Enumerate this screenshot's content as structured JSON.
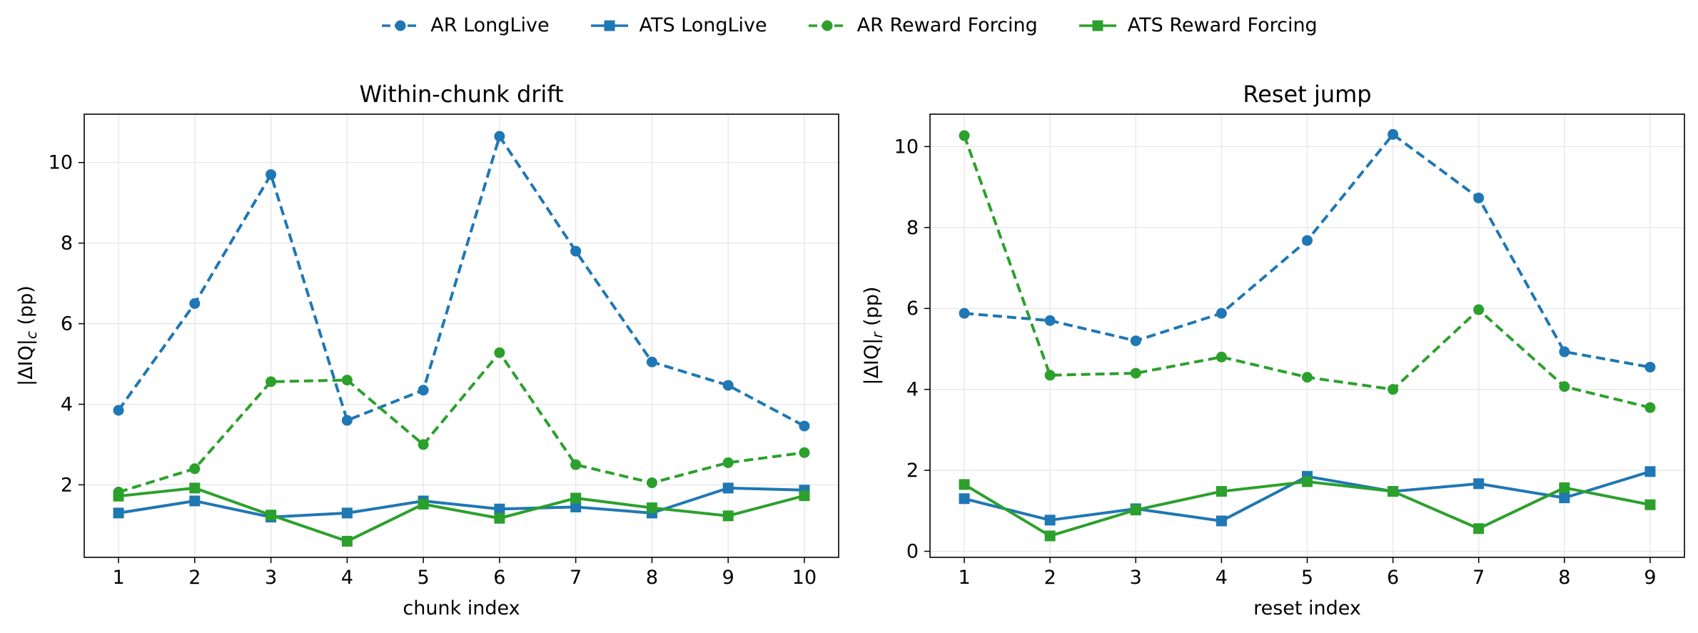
{
  "legend": {
    "items": [
      {
        "label": "AR LongLive",
        "color": "#1f77b4",
        "dashed": true,
        "marker": "circle"
      },
      {
        "label": "ATS LongLive",
        "color": "#1f77b4",
        "dashed": false,
        "marker": "square"
      },
      {
        "label": "AR Reward Forcing",
        "color": "#2ca02c",
        "dashed": true,
        "marker": "circle"
      },
      {
        "label": "ATS Reward Forcing",
        "color": "#2ca02c",
        "dashed": false,
        "marker": "square"
      }
    ],
    "placement": "top-center"
  },
  "chart_data": [
    {
      "type": "line",
      "title": "Within-chunk drift",
      "xlabel": "chunk index",
      "ylabel": "|ΔIQ|c (pp)",
      "ylabel_parts": {
        "pre": "|ΔIQ|",
        "sub": "c",
        "post": " (pp)"
      },
      "x": [
        1,
        2,
        3,
        4,
        5,
        6,
        7,
        8,
        9,
        10
      ],
      "xticks": [
        1,
        2,
        3,
        4,
        5,
        6,
        7,
        8,
        9,
        10
      ],
      "yticks": [
        2,
        4,
        6,
        8,
        10
      ],
      "xlim": [
        0.55,
        10.45
      ],
      "ylim": [
        0.2,
        11.2
      ],
      "grid": true,
      "series": [
        {
          "name": "AR LongLive",
          "color": "#1f77b4",
          "dashed": true,
          "marker": "circle",
          "values": [
            3.85,
            6.5,
            9.7,
            3.6,
            4.35,
            10.65,
            7.8,
            5.05,
            4.47,
            3.46
          ]
        },
        {
          "name": "ATS LongLive",
          "color": "#1f77b4",
          "dashed": false,
          "marker": "square",
          "values": [
            1.3,
            1.6,
            1.2,
            1.3,
            1.6,
            1.4,
            1.45,
            1.3,
            1.92,
            1.87
          ]
        },
        {
          "name": "AR Reward Forcing",
          "color": "#2ca02c",
          "dashed": true,
          "marker": "circle",
          "values": [
            1.82,
            2.4,
            4.56,
            4.6,
            3.0,
            5.28,
            2.5,
            2.05,
            2.55,
            2.8
          ]
        },
        {
          "name": "ATS Reward Forcing",
          "color": "#2ca02c",
          "dashed": false,
          "marker": "square",
          "values": [
            1.72,
            1.92,
            1.25,
            0.6,
            1.52,
            1.17,
            1.67,
            1.43,
            1.23,
            1.73
          ]
        }
      ]
    },
    {
      "type": "line",
      "title": "Reset jump",
      "xlabel": "reset index",
      "ylabel": "|ΔIQ|r (pp)",
      "ylabel_parts": {
        "pre": "|ΔIQ|",
        "sub": "r",
        "post": " (pp)"
      },
      "x": [
        1,
        2,
        3,
        4,
        5,
        6,
        7,
        8,
        9
      ],
      "xticks": [
        1,
        2,
        3,
        4,
        5,
        6,
        7,
        8,
        9
      ],
      "yticks": [
        0,
        2,
        4,
        6,
        8,
        10
      ],
      "xlim": [
        0.6,
        9.4
      ],
      "ylim": [
        -0.15,
        10.8
      ],
      "grid": true,
      "series": [
        {
          "name": "AR LongLive",
          "color": "#1f77b4",
          "dashed": true,
          "marker": "circle",
          "values": [
            5.88,
            5.7,
            5.2,
            5.88,
            7.68,
            10.3,
            8.73,
            4.93,
            4.55
          ]
        },
        {
          "name": "ATS LongLive",
          "color": "#1f77b4",
          "dashed": false,
          "marker": "square",
          "values": [
            1.3,
            0.77,
            1.05,
            0.75,
            1.85,
            1.48,
            1.67,
            1.32,
            1.97
          ]
        },
        {
          "name": "AR Reward Forcing",
          "color": "#2ca02c",
          "dashed": true,
          "marker": "circle",
          "values": [
            10.27,
            4.35,
            4.4,
            4.8,
            4.3,
            4.0,
            5.97,
            4.07,
            3.55
          ]
        },
        {
          "name": "ATS Reward Forcing",
          "color": "#2ca02c",
          "dashed": false,
          "marker": "square",
          "values": [
            1.65,
            0.38,
            1.02,
            1.48,
            1.72,
            1.48,
            0.56,
            1.57,
            1.15
          ]
        }
      ]
    }
  ]
}
